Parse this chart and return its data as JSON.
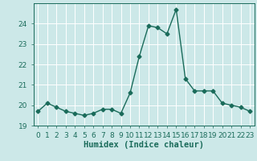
{
  "x": [
    0,
    1,
    2,
    3,
    4,
    5,
    6,
    7,
    8,
    9,
    10,
    11,
    12,
    13,
    14,
    15,
    16,
    17,
    18,
    19,
    20,
    21,
    22,
    23
  ],
  "y": [
    19.7,
    20.1,
    19.9,
    19.7,
    19.6,
    19.5,
    19.6,
    19.8,
    19.8,
    19.6,
    20.6,
    22.4,
    23.9,
    23.8,
    23.5,
    24.7,
    21.3,
    20.7,
    20.7,
    20.7,
    20.1,
    20.0,
    19.9,
    19.7
  ],
  "xlabel": "Humidex (Indice chaleur)",
  "xlim": [
    -0.5,
    23.5
  ],
  "ylim": [
    19,
    25
  ],
  "yticks": [
    19,
    20,
    21,
    22,
    23,
    24
  ],
  "xticks": [
    0,
    1,
    2,
    3,
    4,
    5,
    6,
    7,
    8,
    9,
    10,
    11,
    12,
    13,
    14,
    15,
    16,
    17,
    18,
    19,
    20,
    21,
    22,
    23
  ],
  "line_color": "#1a6b5a",
  "marker": "D",
  "marker_size": 2.5,
  "line_width": 1.0,
  "bg_color": "#cce8e8",
  "grid_color": "#b0d8d8",
  "tick_color": "#1a6b5a",
  "label_color": "#1a6b5a",
  "xlabel_fontsize": 7.5,
  "tick_fontsize": 6.5
}
